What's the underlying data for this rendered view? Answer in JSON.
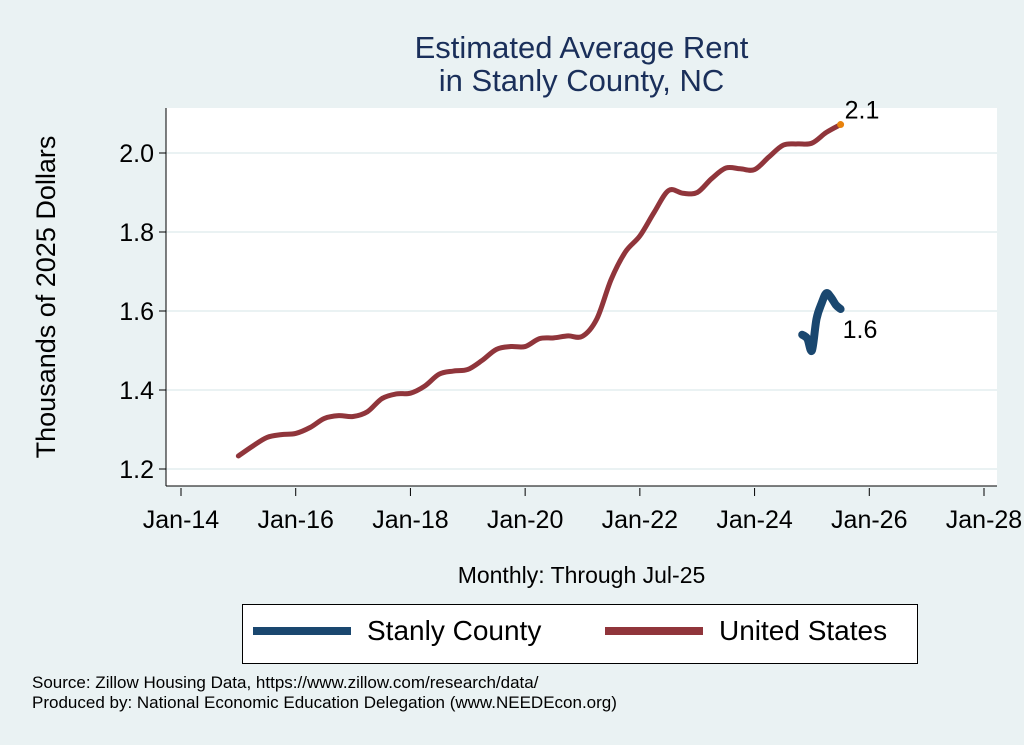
{
  "title_lines": [
    "Estimated Average Rent",
    "in Stanly County, NC"
  ],
  "xlabel": "Monthly: Through Jul-25",
  "legend": [
    {
      "name": "Stanly County",
      "color": "#1a476f"
    },
    {
      "name": "United States",
      "color": "#90353b"
    }
  ],
  "notes": [
    "Source: Zillow Housing Data, https://www.zillow.com/research/data/",
    "Produced by: National Economic Education Delegation (www.NEEDEcon.org)"
  ],
  "chart_data": {
    "type": "line",
    "title": "Estimated Average Rent in Stanly County, NC",
    "xlabel": "Monthly: Through Jul-25",
    "ylabel": "Thousands of 2025 Dollars",
    "ylim": [
      1.2,
      2.1
    ],
    "yticks": [
      1.2,
      1.4,
      1.6,
      1.8,
      2.0
    ],
    "ytick_labels": [
      "1.2",
      "1.4",
      "1.6",
      "1.8",
      "2.0"
    ],
    "xlim": [
      2014.0,
      2028.0
    ],
    "xticks": [
      2014,
      2016,
      2018,
      2020,
      2022,
      2024,
      2026,
      2028
    ],
    "xtick_labels": [
      "Jan-14",
      "Jan-16",
      "Jan-18",
      "Jan-20",
      "Jan-22",
      "Jan-24",
      "Jan-26",
      "Jan-28"
    ],
    "grid": true,
    "legend_position": "bottom",
    "series": [
      {
        "name": "United States",
        "color": "#90353b",
        "x": [
          2015.0,
          2015.25,
          2015.5,
          2015.75,
          2016.0,
          2016.25,
          2016.5,
          2016.75,
          2017.0,
          2017.25,
          2017.5,
          2017.75,
          2018.0,
          2018.25,
          2018.5,
          2018.75,
          2019.0,
          2019.25,
          2019.5,
          2019.75,
          2020.0,
          2020.25,
          2020.5,
          2020.75,
          2021.0,
          2021.25,
          2021.5,
          2021.75,
          2022.0,
          2022.25,
          2022.5,
          2022.75,
          2023.0,
          2023.25,
          2023.5,
          2023.75,
          2024.0,
          2024.25,
          2024.5,
          2024.75,
          2025.0,
          2025.25,
          2025.5
        ],
        "values": [
          1.233,
          1.258,
          1.28,
          1.287,
          1.29,
          1.305,
          1.328,
          1.335,
          1.333,
          1.345,
          1.378,
          1.39,
          1.392,
          1.41,
          1.44,
          1.448,
          1.452,
          1.475,
          1.503,
          1.51,
          1.51,
          1.53,
          1.532,
          1.537,
          1.536,
          1.58,
          1.68,
          1.75,
          1.79,
          1.85,
          1.905,
          1.898,
          1.9,
          1.935,
          1.962,
          1.96,
          1.958,
          1.99,
          2.02,
          2.023,
          2.025,
          2.052,
          2.072
        ],
        "end_label": "2.1"
      },
      {
        "name": "Stanly County",
        "color": "#1a476f",
        "x": [
          2024.83,
          2024.92,
          2025.0,
          2025.08,
          2025.17,
          2025.25,
          2025.33,
          2025.42,
          2025.5
        ],
        "values": [
          1.54,
          1.53,
          1.5,
          1.58,
          1.62,
          1.645,
          1.635,
          1.615,
          1.605
        ],
        "end_label": "1.6"
      }
    ]
  }
}
